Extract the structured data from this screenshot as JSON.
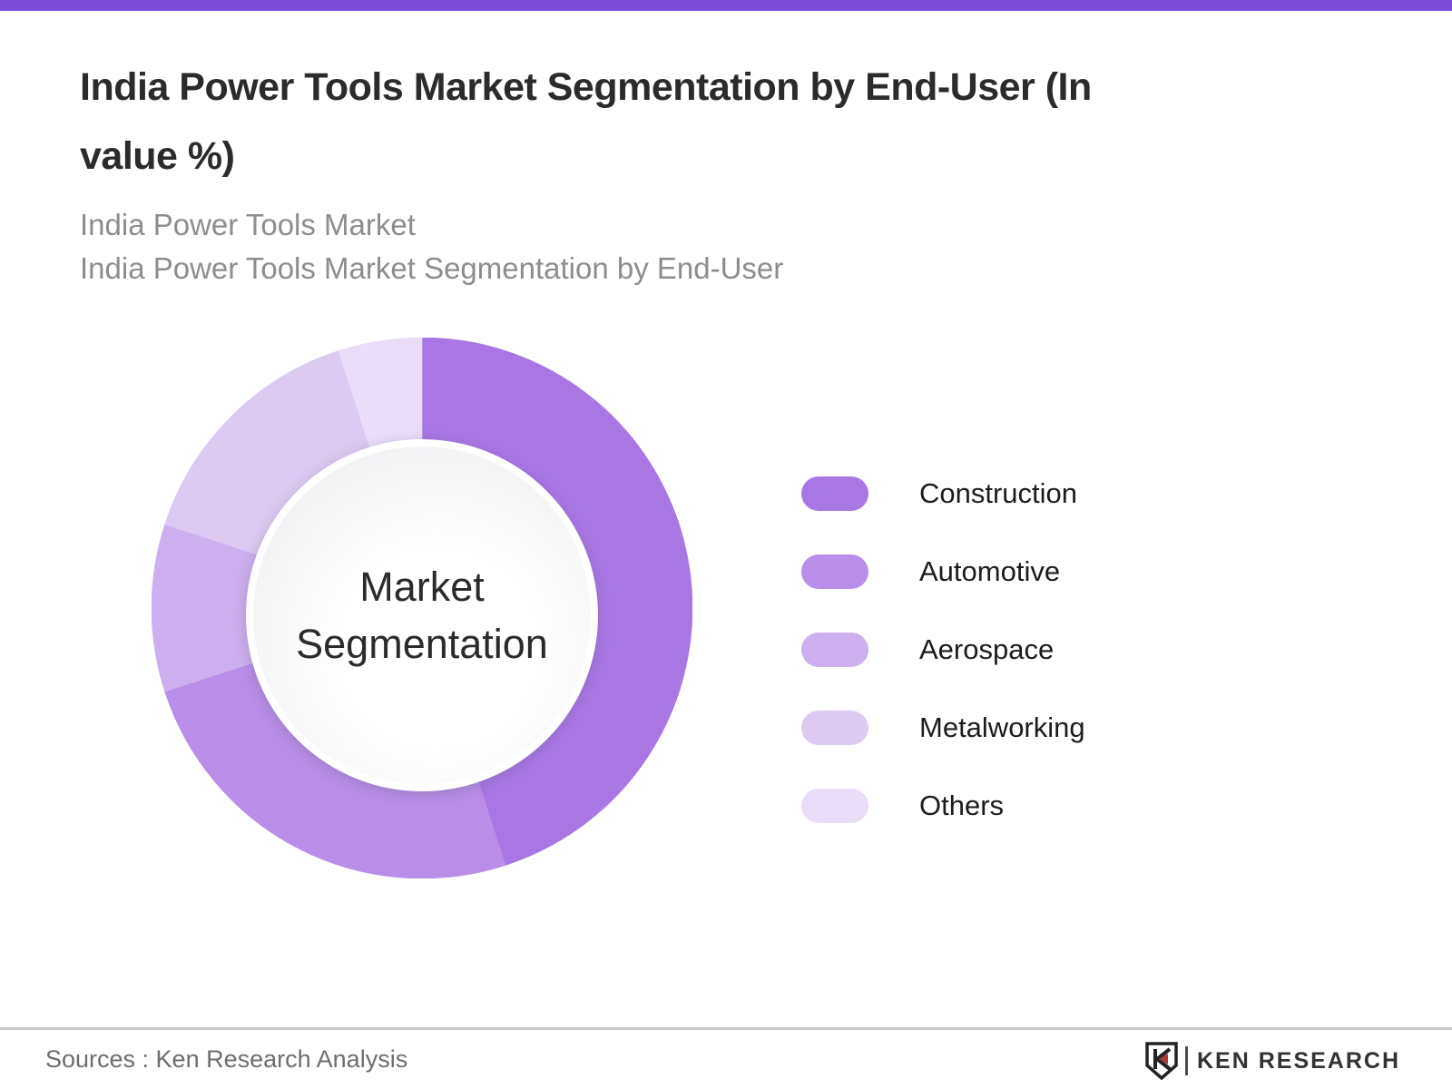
{
  "accent_bar_color": "#7b4dd6",
  "header": {
    "title_lines": [
      "India Power Tools Market Segmentation by End-User (In",
      "value %)"
    ],
    "subtitles": [
      "India Power Tools Market",
      "India Power Tools Market Segmentation by End-User"
    ]
  },
  "chart_data": {
    "type": "pie",
    "donut": true,
    "title": "India Power Tools Market Segmentation by End-User (In value %)",
    "center_label": "Market Segmentation",
    "start_angle_deg": 0,
    "direction": "clockwise",
    "legend_position": "right",
    "values_shown_on_chart": false,
    "unit": "value %",
    "segments": [
      {
        "label": "Construction",
        "value": 45,
        "color": "#a877e4"
      },
      {
        "label": "Automotive",
        "value": 25,
        "color": "#b88ee8"
      },
      {
        "label": "Aerospace",
        "value": 10,
        "color": "#ccafef"
      },
      {
        "label": "Metalworking",
        "value": 15,
        "color": "#dccaf3"
      },
      {
        "label": "Others",
        "value": 5,
        "color": "#e9ddf8"
      }
    ]
  },
  "footer": {
    "source_text": "Sources : Ken Research Analysis",
    "logo_text": "KEN RESEARCH"
  }
}
